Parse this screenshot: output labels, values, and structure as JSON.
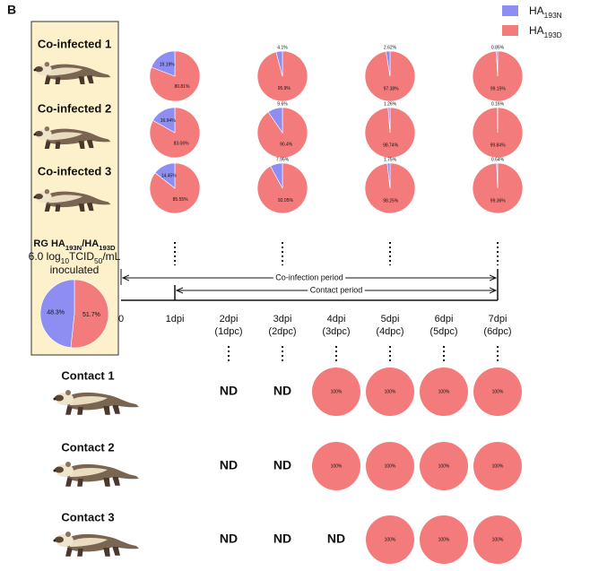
{
  "panel_label": "B",
  "legend": [
    {
      "segments": [
        {
          "text": "HA"
        },
        {
          "text": "193N",
          "sub": true
        }
      ],
      "color": "#8e8ef2"
    },
    {
      "segments": [
        {
          "text": "HA"
        },
        {
          "text": "193D",
          "sub": true
        }
      ],
      "color": "#f47b7b"
    }
  ],
  "infected_rows": [
    {
      "label": "Co-infected 1",
      "pies": [
        {
          "values": [
            19.19,
            80.81
          ],
          "value_labels": [
            "19.19%",
            "80.81%"
          ]
        },
        {
          "values": [
            4.1,
            95.9
          ],
          "value_labels": [
            "4.1%",
            "95.9%"
          ]
        },
        {
          "values": [
            2.62,
            97.38
          ],
          "value_labels": [
            "2.62%",
            "97.38%"
          ]
        },
        {
          "values": [
            0.85,
            99.15
          ],
          "value_labels": [
            "0.85%",
            "99.15%"
          ]
        }
      ]
    },
    {
      "label": "Co-infected 2",
      "pies": [
        {
          "values": [
            16.94,
            83.06
          ],
          "value_labels": [
            "16.94%",
            "83.06%"
          ]
        },
        {
          "values": [
            9.6,
            90.4
          ],
          "value_labels": [
            "9.6%",
            "90.4%"
          ]
        },
        {
          "values": [
            1.26,
            98.74
          ],
          "value_labels": [
            "1.26%",
            "98.74%"
          ]
        },
        {
          "values": [
            0.16,
            99.84
          ],
          "value_labels": [
            "0.16%",
            "99.84%"
          ]
        }
      ]
    },
    {
      "label": "Co-infected 3",
      "pies": [
        {
          "values": [
            14.45,
            85.55
          ],
          "value_labels": [
            "14.45%",
            "85.55%"
          ]
        },
        {
          "values": [
            7.95,
            92.05
          ],
          "value_labels": [
            "7.95%",
            "92.05%"
          ]
        },
        {
          "values": [
            1.75,
            98.25
          ],
          "value_labels": [
            "1.75%",
            "98.25%"
          ]
        },
        {
          "values": [
            0.64,
            99.36
          ],
          "value_labels": [
            "0.64%",
            "99.36%"
          ]
        }
      ]
    }
  ],
  "inoculum": {
    "lines": [
      [
        {
          "text": "RG HA",
          "bold": true
        },
        {
          "text": "193N",
          "sub": true,
          "bold": true
        },
        {
          "text": "/HA",
          "bold": true
        },
        {
          "text": "193D",
          "sub": true,
          "bold": true
        }
      ],
      [
        {
          "text": "6.0 log"
        },
        {
          "text": "10",
          "sub": true
        },
        {
          "text": "TCID"
        },
        {
          "text": "50",
          "sub": true
        },
        {
          "text": "/mL"
        }
      ],
      [
        {
          "text": "inoculated"
        }
      ]
    ],
    "pie": {
      "values": [
        48.3,
        51.7
      ],
      "value_labels": [
        "48.3%",
        "51.7%"
      ]
    }
  },
  "timeline": {
    "ticks": [
      [
        "0"
      ],
      [
        "1dpi"
      ],
      [
        "2dpi",
        "(1dpc)"
      ],
      [
        "3dpi",
        "(2dpc)"
      ],
      [
        "4dpi",
        "(3dpc)"
      ],
      [
        "5dpi",
        "(4dpc)"
      ],
      [
        "6dpi",
        "(5dpc)"
      ],
      [
        "7dpi",
        "(6dpc)"
      ]
    ],
    "coinfection_period": "Co-infection period",
    "contact_period": "Contact period"
  },
  "contact_rows": [
    {
      "label": "Contact 1",
      "cells": [
        {
          "text": "ND"
        },
        {
          "text": "ND"
        },
        {
          "values": [
            100
          ],
          "value_labels": [
            "100%"
          ]
        },
        {
          "values": [
            100
          ],
          "value_labels": [
            "100%"
          ]
        },
        {
          "values": [
            100
          ],
          "value_labels": [
            "100%"
          ]
        },
        {
          "values": [
            100
          ],
          "value_labels": [
            "100%"
          ]
        }
      ]
    },
    {
      "label": "Contact 2",
      "cells": [
        {
          "text": "ND"
        },
        {
          "text": "ND"
        },
        {
          "values": [
            100
          ],
          "value_labels": [
            "100%"
          ]
        },
        {
          "values": [
            100
          ],
          "value_labels": [
            "100%"
          ]
        },
        {
          "values": [
            100
          ],
          "value_labels": [
            "100%"
          ]
        },
        {
          "values": [
            100
          ],
          "value_labels": [
            "100%"
          ]
        }
      ]
    },
    {
      "label": "Contact 3",
      "cells": [
        {
          "text": "ND"
        },
        {
          "text": "ND"
        },
        {
          "text": "ND"
        },
        {
          "values": [
            100
          ],
          "value_labels": [
            "100%"
          ]
        },
        {
          "values": [
            100
          ],
          "value_labels": [
            "100%"
          ]
        },
        {
          "values": [
            100
          ],
          "value_labels": [
            "100%"
          ]
        }
      ]
    }
  ]
}
